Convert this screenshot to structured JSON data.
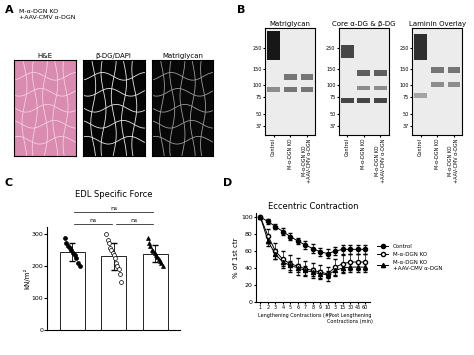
{
  "panels": {
    "A": {
      "label": "A",
      "condition": "M-α-DGN KO\n+AAV-CMV α-DGN",
      "images": [
        "H&E",
        "β-DG/DAPI",
        "Matriglycan"
      ]
    },
    "B": {
      "label": "B",
      "blots": [
        "Matriglycan",
        "Core α-DG & β-DG",
        "Laminin Overlay"
      ],
      "lanes": [
        "Control",
        "M-α-DGN KO",
        "M-α-DGN KO\n+AAV-CMV α-DGN"
      ],
      "ylim": [
        30,
        400
      ],
      "yticks": [
        250,
        150,
        100,
        75,
        50,
        37
      ]
    }
  },
  "chart_data": [
    {
      "panel": "C",
      "type": "bar",
      "title": "EDL Specific Force",
      "y_label": "kN/m²",
      "categories": [
        null,
        null,
        null
      ],
      "values": [
        243,
        229,
        238
      ],
      "errors": [
        27,
        42,
        27
      ],
      "color": "#ffffff",
      "tick_labels": "y",
      "ylim": [
        0,
        320
      ],
      "yticks": [
        0,
        100,
        200,
        300
      ],
      "points": [
        {
          "marker": "circle",
          "color": "#000000",
          "values": [
            285,
            270,
            262,
            255,
            250,
            240,
            235,
            225,
            210,
            200
          ]
        },
        {
          "marker": "circle",
          "color": "#ffffff",
          "values": [
            300,
            280,
            270,
            255,
            250,
            240,
            235,
            225,
            210,
            200,
            190,
            175,
            150
          ]
        },
        {
          "marker": "triangle",
          "color": "#000000",
          "values": [
            285,
            270,
            262,
            250,
            245,
            240,
            235,
            228,
            222,
            215,
            208,
            200
          ]
        }
      ],
      "comparisons": [
        {
          "pair": [
            0,
            1
          ],
          "label": "ns"
        },
        {
          "pair": [
            1,
            2
          ],
          "label": "ns"
        },
        {
          "pair": [
            0,
            2
          ],
          "label": "ns"
        }
      ]
    },
    {
      "panel": "D",
      "type": "line",
      "title": "Eccentric Contraction",
      "y_label": "% of 1st ctr",
      "category_groups": [
        {
          "label": "Lengthening Contractions (#)",
          "categories": [
            "1",
            "2",
            "3",
            "4",
            "5",
            "6",
            "7",
            "8",
            "9",
            "10"
          ]
        },
        {
          "label": "Post Lengthening\nContractions (min)",
          "categories": [
            "3",
            "15",
            "30",
            "45",
            "60"
          ]
        }
      ],
      "ylim": [
        0,
        105
      ],
      "yticks": [
        0,
        20,
        40,
        60,
        80,
        100
      ],
      "legend": "right",
      "series": [
        {
          "name": "Control",
          "color": "#000000",
          "marker": "circle",
          "values": [
            100,
            95,
            89,
            83,
            77,
            72,
            67,
            63,
            59,
            57,
            60,
            62,
            62,
            62,
            62
          ],
          "errors": [
            0,
            3,
            3,
            4,
            4,
            4,
            5,
            5,
            5,
            5,
            5,
            5,
            5,
            5,
            5
          ]
        },
        {
          "name": "M-α-DGN KO",
          "color": "#ffffff",
          "marker": "circle",
          "values": [
            100,
            78,
            60,
            50,
            45,
            42,
            39,
            37,
            35,
            33,
            41,
            45,
            47,
            47,
            47
          ],
          "errors": [
            0,
            8,
            10,
            10,
            10,
            10,
            9,
            9,
            8,
            8,
            10,
            10,
            10,
            10,
            10
          ]
        },
        {
          "name": "M-α-DGN KO\n+AAV-CMV α-DGN",
          "color": "#000000",
          "marker": "triangle",
          "values": [
            100,
            72,
            56,
            47,
            43,
            40,
            37,
            35,
            33,
            32,
            37,
            40,
            41,
            41,
            41
          ],
          "errors": [
            0,
            6,
            6,
            5,
            5,
            5,
            5,
            5,
            5,
            4,
            5,
            6,
            6,
            6,
            6
          ]
        }
      ]
    }
  ]
}
